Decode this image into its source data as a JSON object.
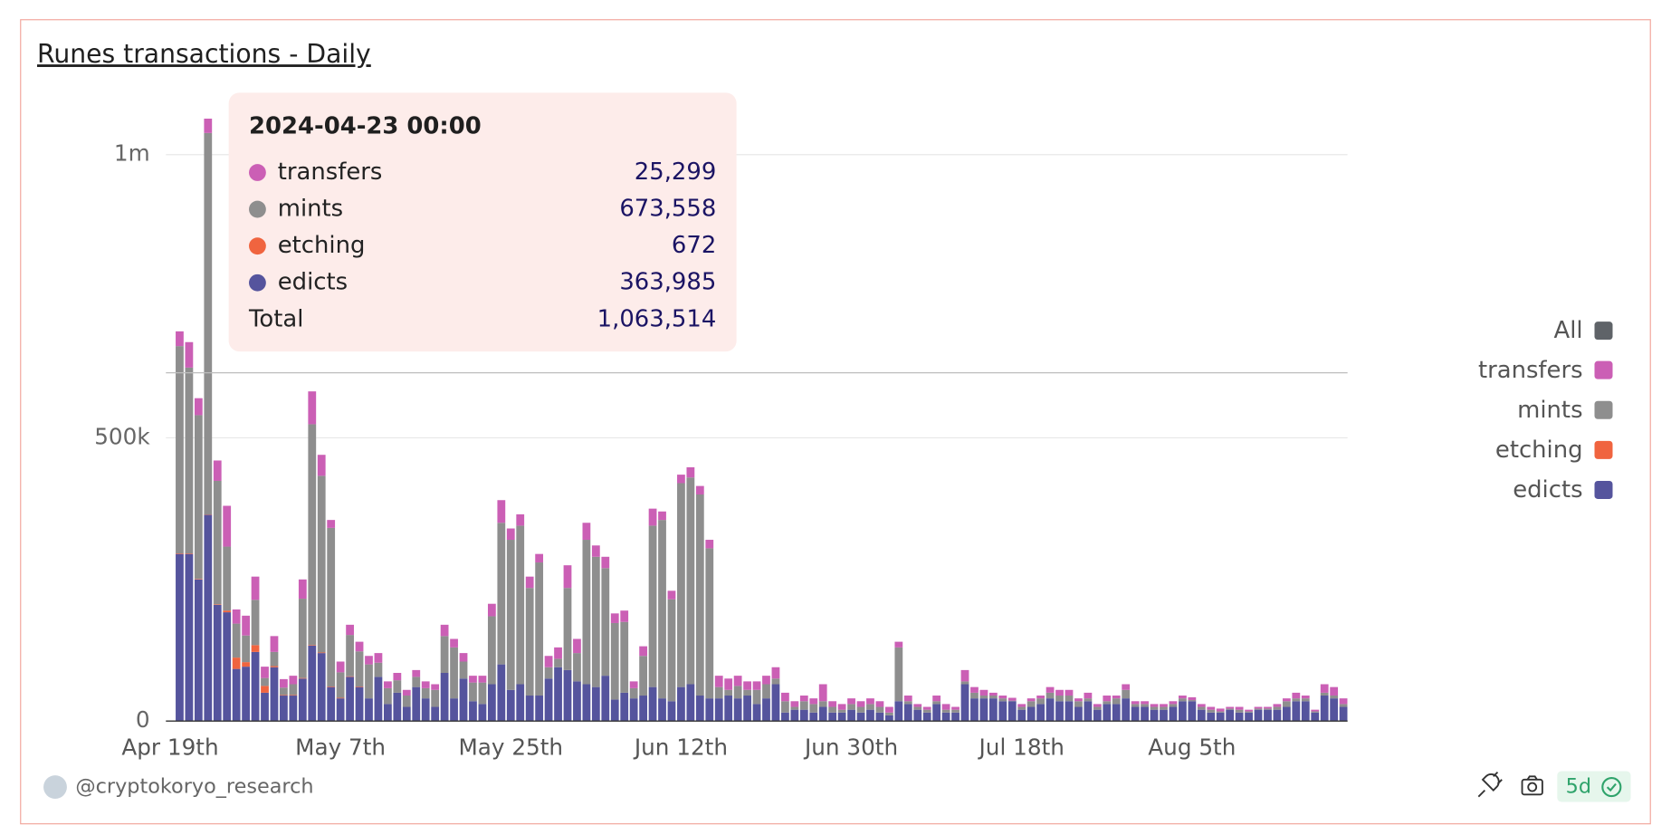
{
  "chart_data": {
    "type": "stacked-bar",
    "title": "Runes transactions - Daily",
    "x": [
      "2024-04-20",
      "2024-04-21",
      "2024-04-22",
      "2024-04-23",
      "2024-04-24",
      "2024-04-25",
      "2024-04-26",
      "2024-04-27",
      "2024-04-28",
      "2024-04-29",
      "2024-04-30",
      "2024-05-01",
      "2024-05-02",
      "2024-05-03",
      "2024-05-04",
      "2024-05-05",
      "2024-05-06",
      "2024-05-07",
      "2024-05-08",
      "2024-05-09",
      "2024-05-10",
      "2024-05-11",
      "2024-05-12",
      "2024-05-13",
      "2024-05-14",
      "2024-05-15",
      "2024-05-16",
      "2024-05-17",
      "2024-05-18",
      "2024-05-19",
      "2024-05-20",
      "2024-05-21",
      "2024-05-22",
      "2024-05-23",
      "2024-05-24",
      "2024-05-25",
      "2024-05-26",
      "2024-05-27",
      "2024-05-28",
      "2024-05-29",
      "2024-05-30",
      "2024-05-31",
      "2024-06-01",
      "2024-06-02",
      "2024-06-03",
      "2024-06-04",
      "2024-06-05",
      "2024-06-06",
      "2024-06-07",
      "2024-06-08",
      "2024-06-09",
      "2024-06-10",
      "2024-06-11",
      "2024-06-12",
      "2024-06-13",
      "2024-06-14",
      "2024-06-15",
      "2024-06-16",
      "2024-06-17",
      "2024-06-18",
      "2024-06-19",
      "2024-06-20",
      "2024-06-21",
      "2024-06-22",
      "2024-06-23",
      "2024-06-24",
      "2024-06-25",
      "2024-06-26",
      "2024-06-27",
      "2024-06-28",
      "2024-06-29",
      "2024-06-30",
      "2024-07-01",
      "2024-07-02",
      "2024-07-03",
      "2024-07-04",
      "2024-07-05",
      "2024-07-06",
      "2024-07-07",
      "2024-07-08",
      "2024-07-09",
      "2024-07-10",
      "2024-07-11",
      "2024-07-12",
      "2024-07-13",
      "2024-07-14",
      "2024-07-15",
      "2024-07-16",
      "2024-07-17",
      "2024-07-18",
      "2024-07-19",
      "2024-07-20",
      "2024-07-21",
      "2024-07-22",
      "2024-07-23",
      "2024-07-24",
      "2024-07-25",
      "2024-07-26",
      "2024-07-27",
      "2024-07-28",
      "2024-07-29",
      "2024-07-30",
      "2024-07-31",
      "2024-08-01",
      "2024-08-02",
      "2024-08-03",
      "2024-08-04",
      "2024-08-05",
      "2024-08-06",
      "2024-08-07",
      "2024-08-08",
      "2024-08-09",
      "2024-08-10",
      "2024-08-11",
      "2024-08-12",
      "2024-08-13",
      "2024-08-14",
      "2024-08-15",
      "2024-08-16",
      "2024-08-17",
      "2024-08-18",
      "2024-08-19",
      "2024-08-20",
      "2024-08-21"
    ],
    "xlim": [
      "2024-04-19",
      "2024-08-22"
    ],
    "xticks": [
      {
        "value": "2024-04-19",
        "label": "Apr 19th"
      },
      {
        "value": "2024-05-07",
        "label": "May 7th"
      },
      {
        "value": "2024-05-25",
        "label": "May 25th"
      },
      {
        "value": "2024-06-12",
        "label": "Jun 12th"
      },
      {
        "value": "2024-06-30",
        "label": "Jun 30th"
      },
      {
        "value": "2024-07-18",
        "label": "Jul 18th"
      },
      {
        "value": "2024-08-05",
        "label": "Aug 5th"
      }
    ],
    "ylim": [
      0,
      1100000
    ],
    "yticks": [
      0,
      {
        "value": 500000,
        "label": "500k"
      },
      {
        "value": 1000000,
        "label": "1m"
      }
    ],
    "grid": true,
    "legend_position": "right",
    "legend_all": {
      "label": "All",
      "color": "#5f6368"
    },
    "series": [
      {
        "name": "edicts",
        "color": "#55549d",
        "values": [
          295000,
          295000,
          250000,
          363985,
          205000,
          192000,
          92000,
          96000,
          122000,
          50000,
          95000,
          45000,
          45000,
          75000,
          133000,
          120000,
          60000,
          40000,
          78000,
          60000,
          40000,
          78000,
          30000,
          50000,
          25000,
          60000,
          40000,
          25000,
          85000,
          40000,
          75000,
          35000,
          30000,
          65000,
          100000,
          55000,
          65000,
          45000,
          45000,
          75000,
          95000,
          90000,
          70000,
          65000,
          60000,
          80000,
          38000,
          50000,
          40000,
          45000,
          60000,
          40000,
          35000,
          60000,
          65000,
          45000,
          40000,
          40000,
          45000,
          40000,
          45000,
          30000,
          40000,
          65000,
          15000,
          20000,
          20000,
          15000,
          25000,
          15000,
          15000,
          20000,
          15000,
          20000,
          15000,
          10000,
          35000,
          30000,
          20000,
          15000,
          30000,
          15000,
          15000,
          65000,
          40000,
          40000,
          40000,
          35000,
          35000,
          20000,
          25000,
          30000,
          40000,
          35000,
          35000,
          25000,
          35000,
          20000,
          30000,
          30000,
          40000,
          25000,
          25000,
          20000,
          20000,
          25000,
          35000,
          35000,
          20000,
          15000,
          15000,
          20000,
          15000,
          15000,
          20000,
          20000,
          20000,
          25000,
          35000,
          35000,
          15000,
          45000,
          40000,
          25000
        ]
      },
      {
        "name": "etching",
        "color": "#f0643f",
        "values": [
          1000,
          1000,
          1000,
          672,
          1000,
          3000,
          20000,
          8000,
          12000,
          12000,
          2000,
          1000,
          1000,
          1000,
          1000,
          1000,
          1000,
          1000,
          1000,
          1000,
          0,
          0,
          0,
          0,
          0,
          0,
          0,
          0,
          0,
          0,
          0,
          0,
          0,
          0,
          0,
          0,
          0,
          0,
          0,
          0,
          0,
          0,
          0,
          0,
          0,
          0,
          0,
          0,
          0,
          0,
          0,
          0,
          0,
          0,
          0,
          0,
          0,
          0,
          0,
          0,
          0,
          0,
          0,
          0,
          0,
          0,
          0,
          0,
          0,
          0,
          0,
          0,
          0,
          0,
          0,
          0,
          0,
          0,
          0,
          0,
          0,
          0,
          0,
          0,
          0,
          0,
          0,
          0,
          0,
          0,
          0,
          0,
          0,
          0,
          0,
          0,
          0,
          0,
          0,
          0,
          0,
          0,
          0,
          0,
          0,
          0,
          0,
          0,
          0,
          0,
          0,
          0,
          0,
          0,
          0,
          0,
          0,
          0,
          0,
          0,
          0,
          0,
          0,
          0
        ]
      },
      {
        "name": "mints",
        "color": "#8e8e8e",
        "values": [
          366000,
          328000,
          289000,
          673558,
          218000,
          113000,
          60000,
          47000,
          80000,
          14000,
          25000,
          13000,
          19000,
          140000,
          390000,
          312000,
          280000,
          45000,
          73000,
          62000,
          60000,
          25000,
          28000,
          22000,
          20000,
          18000,
          18000,
          30000,
          65000,
          90000,
          30000,
          33000,
          38000,
          120000,
          250000,
          265000,
          280000,
          190000,
          235000,
          20000,
          15000,
          145000,
          50000,
          255000,
          230000,
          190000,
          135000,
          125000,
          18000,
          70000,
          285000,
          315000,
          180000,
          360000,
          365000,
          355000,
          265000,
          20000,
          10000,
          22000,
          10000,
          25000,
          25000,
          10000,
          20000,
          5000,
          15000,
          15000,
          10000,
          10000,
          5000,
          10000,
          10000,
          10000,
          10000,
          5000,
          95000,
          5000,
          5000,
          5000,
          5000,
          5000,
          5000,
          5000,
          10000,
          5000,
          5000,
          5000,
          1000,
          5000,
          10000,
          10000,
          10000,
          10000,
          10000,
          10000,
          5000,
          5000,
          5000,
          10000,
          15000,
          5000,
          5000,
          5000,
          5000,
          5000,
          5000,
          2000,
          5000,
          5000,
          2000,
          2000,
          5000,
          2000,
          2000,
          2000,
          5000,
          10000,
          5000,
          5000,
          2000,
          5000,
          5000,
          5000
        ]
      },
      {
        "name": "transfers",
        "color": "#cb5fb5",
        "values": [
          26000,
          45000,
          30000,
          25299,
          36000,
          72000,
          25000,
          35000,
          41000,
          20000,
          28000,
          15000,
          15000,
          34000,
          58000,
          37000,
          14000,
          19000,
          18000,
          17000,
          15000,
          17000,
          12000,
          13000,
          10000,
          12000,
          12000,
          10000,
          20000,
          15000,
          15000,
          12000,
          12000,
          22000,
          40000,
          20000,
          20000,
          20000,
          15000,
          20000,
          20000,
          40000,
          25000,
          30000,
          20000,
          20000,
          17000,
          20000,
          12000,
          17000,
          30000,
          15000,
          15000,
          15000,
          18000,
          15000,
          15000,
          20000,
          20000,
          18000,
          15000,
          15000,
          15000,
          20000,
          15000,
          10000,
          10000,
          10000,
          30000,
          10000,
          10000,
          10000,
          10000,
          10000,
          10000,
          10000,
          10000,
          10000,
          5000,
          5000,
          10000,
          10000,
          5000,
          20000,
          10000,
          10000,
          5000,
          5000,
          5000,
          5000,
          5000,
          5000,
          10000,
          10000,
          10000,
          5000,
          10000,
          5000,
          10000,
          5000,
          10000,
          5000,
          5000,
          5000,
          5000,
          5000,
          5000,
          5000,
          5000,
          5000,
          5000,
          3000,
          5000,
          3000,
          3000,
          3000,
          5000,
          5000,
          10000,
          5000,
          3000,
          15000,
          15000,
          10000
        ]
      }
    ],
    "tooltip": {
      "title": "2024-04-23 00:00",
      "values": [
        "363,985",
        "672",
        "673,558",
        "25,299"
      ],
      "total_name": "Total",
      "total": "1,063,514"
    },
    "author": "@cryptokoryo_research",
    "refresh_badge": "5d"
  }
}
